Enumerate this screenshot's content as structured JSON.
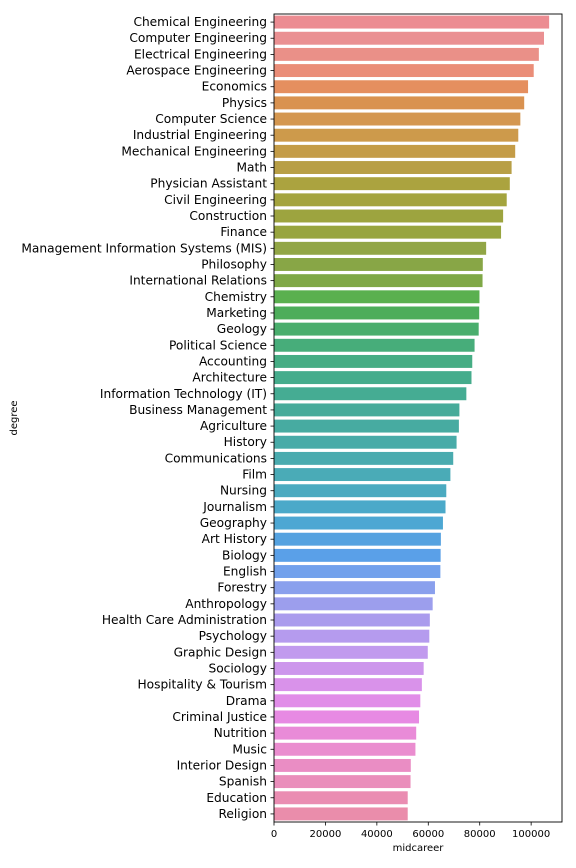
{
  "chart_data": {
    "type": "bar",
    "orientation": "horizontal",
    "xlabel": "midcareer",
    "ylabel": "degree",
    "xlim": [
      0,
      112000
    ],
    "xticks": [
      0,
      20000,
      40000,
      60000,
      80000,
      100000
    ],
    "xtick_labels": [
      "0",
      "20000",
      "40000",
      "60000",
      "80000",
      "100000"
    ],
    "grid": false,
    "categories": [
      "Chemical Engineering",
      "Computer Engineering",
      "Electrical Engineering",
      "Aerospace Engineering",
      "Economics",
      "Physics",
      "Computer Science",
      "Industrial Engineering",
      "Mechanical Engineering",
      "Math",
      "Physician Assistant",
      "Civil Engineering",
      "Construction",
      "Finance",
      "Management Information Systems (MIS)",
      "Philosophy",
      "International Relations",
      "Chemistry",
      "Marketing",
      "Geology",
      "Political Science",
      "Accounting",
      "Architecture",
      "Information Technology (IT)",
      "Business Management",
      "Agriculture",
      "History",
      "Communications",
      "Film",
      "Nursing",
      "Journalism",
      "Geography",
      "Art History",
      "Biology",
      "English",
      "Forestry",
      "Anthropology",
      "Health Care Administration",
      "Psychology",
      "Graphic Design",
      "Sociology",
      "Hospitality & Tourism",
      "Drama",
      "Criminal Justice",
      "Nutrition",
      "Music",
      "Interior Design",
      "Spanish",
      "Education",
      "Religion"
    ],
    "values": [
      107000,
      105000,
      103000,
      101000,
      98800,
      97300,
      95800,
      95000,
      93800,
      92400,
      91700,
      90500,
      89100,
      88300,
      82500,
      81200,
      81100,
      79900,
      79800,
      79600,
      78000,
      77100,
      76800,
      74800,
      72100,
      71900,
      71000,
      69700,
      68600,
      67000,
      66700,
      65700,
      64900,
      64800,
      64700,
      62600,
      61700,
      60600,
      60400,
      59800,
      58200,
      57500,
      56900,
      56400,
      55300,
      55000,
      53200,
      53100,
      52000,
      52000
    ],
    "colors": [
      "#ec8c92",
      "#ea9092",
      "#ea9088",
      "#ea8d78",
      "#e58f5f",
      "#d99250",
      "#d49750",
      "#cd9a4b",
      "#c49c47",
      "#b89f46",
      "#aba33f",
      "#a4a43e",
      "#9da43f",
      "#98a53f",
      "#92a646",
      "#88a646",
      "#7fa846",
      "#5ab04f",
      "#4dad5a",
      "#4aae6d",
      "#47ad7a",
      "#46ad84",
      "#45ac8c",
      "#45ac93",
      "#46ab9a",
      "#47aba1",
      "#48aba8",
      "#4aabaf",
      "#4aabb7",
      "#4baac0",
      "#4ba9c9",
      "#4da7d3",
      "#55a2e0",
      "#5aa0e8",
      "#72a1ec",
      "#8aa0ed",
      "#9c9eed",
      "#aa9bed",
      "#b59bee",
      "#c19aee",
      "#cd96ec",
      "#d992ea",
      "#e18de8",
      "#e78ae3",
      "#e98bd8",
      "#ea8dcf",
      "#ea8dc4",
      "#ea8ebb",
      "#ea8db2",
      "#ea8dab"
    ]
  }
}
